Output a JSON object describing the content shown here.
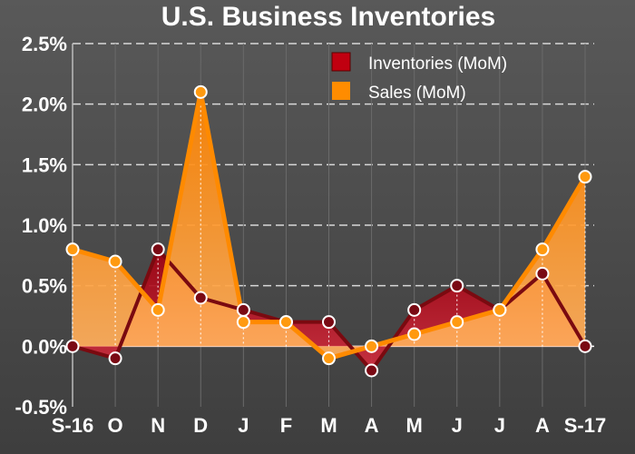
{
  "chart_data": {
    "type": "area",
    "title": "U.S. Business Inventories",
    "categories": [
      "S-16",
      "O",
      "N",
      "D",
      "J",
      "F",
      "M",
      "A",
      "M",
      "J",
      "J",
      "A",
      "S-17"
    ],
    "ylim": [
      -0.5,
      2.5
    ],
    "yticks": [
      -0.5,
      0.0,
      0.5,
      1.0,
      1.5,
      2.0,
      2.5
    ],
    "ytick_labels": [
      "-0.5%",
      "0.0%",
      "0.5%",
      "1.0%",
      "1.5%",
      "2.0%",
      "2.5%"
    ],
    "grid": "horizontal dashed, vertical solid",
    "legend_position": "top-right",
    "series": [
      {
        "name": "Inventories (MoM)",
        "values": [
          0.0,
          -0.1,
          0.8,
          0.4,
          0.3,
          0.2,
          0.2,
          -0.2,
          0.3,
          0.5,
          0.3,
          0.6,
          0.0
        ],
        "color": "#c00000",
        "line_color": "#7a0a10"
      },
      {
        "name": "Sales (MoM)",
        "values": [
          0.8,
          0.7,
          0.3,
          2.1,
          0.2,
          0.2,
          -0.1,
          0.0,
          0.1,
          0.2,
          0.3,
          0.8,
          1.4
        ],
        "color": "#ff8c00",
        "line_color": "#ff8a00"
      }
    ]
  }
}
